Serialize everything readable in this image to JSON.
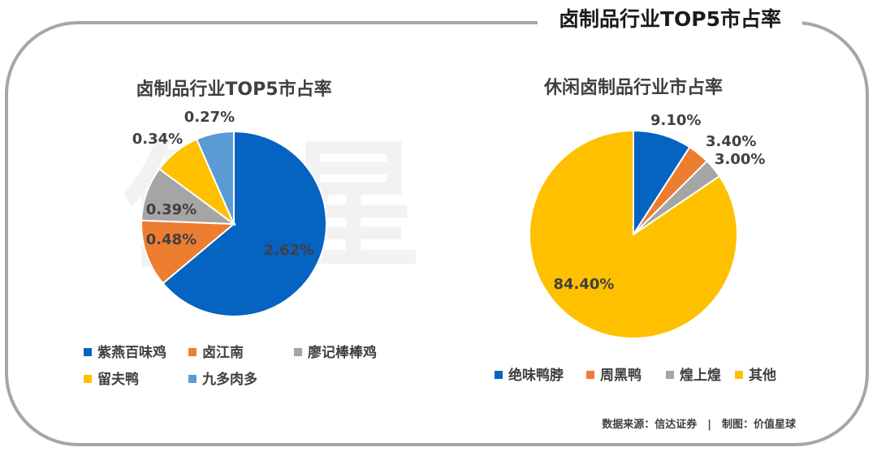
{
  "header": {
    "title": "卤制品行业TOP5市占率"
  },
  "watermark": {
    "text": "值星"
  },
  "footer": {
    "text": "数据来源：信达证券　|　制图：价值星球"
  },
  "colors": {
    "frame": "#a6a6a6",
    "blue": "#0563c1",
    "orange": "#ed7d31",
    "gray": "#a5a5a5",
    "gold": "#ffc000",
    "lightblue": "#5b9bd5"
  },
  "chart_data": [
    {
      "type": "pie",
      "title": "卤制品行业TOP5市占率",
      "legend_position": "bottom",
      "slices": [
        {
          "label": "紫燕百味鸡",
          "value": 2.62,
          "display": "2.62%",
          "color": "#0563c1"
        },
        {
          "label": "卤江南",
          "value": 0.48,
          "display": "0.48%",
          "color": "#ed7d31"
        },
        {
          "label": "廖记棒棒鸡",
          "value": 0.39,
          "display": "0.39%",
          "color": "#a5a5a5"
        },
        {
          "label": "留夫鸭",
          "value": 0.34,
          "display": "0.34%",
          "color": "#ffc000"
        },
        {
          "label": "九多肉多",
          "value": 0.27,
          "display": "0.27%",
          "color": "#5b9bd5"
        }
      ]
    },
    {
      "type": "pie",
      "title": "休闲卤制品行业市占率",
      "legend_position": "bottom",
      "slices": [
        {
          "label": "绝味鸭脖",
          "value": 9.1,
          "display": "9.10%",
          "color": "#0563c1"
        },
        {
          "label": "周黑鸭",
          "value": 3.4,
          "display": "3.40%",
          "color": "#ed7d31"
        },
        {
          "label": "煌上煌",
          "value": 3.0,
          "display": "3.00%",
          "color": "#a5a5a5"
        },
        {
          "label": "其他",
          "value": 84.4,
          "display": "84.40%",
          "color": "#ffc000"
        }
      ]
    }
  ]
}
